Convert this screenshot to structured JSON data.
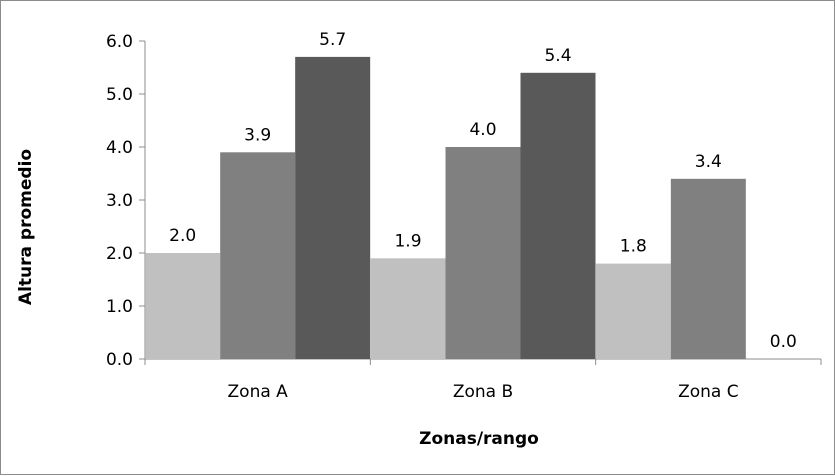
{
  "chart_data": {
    "type": "bar",
    "title": "",
    "xlabel": "Zonas/rango",
    "ylabel": "Altura promedio",
    "categories": [
      "Zona A",
      "Zona B",
      "Zona C"
    ],
    "series": [
      {
        "values": [
          2.0,
          1.9,
          1.8
        ],
        "color": "#c0c0c0"
      },
      {
        "values": [
          3.9,
          4.0,
          3.4
        ],
        "color": "#808080"
      },
      {
        "values": [
          5.7,
          5.4,
          0.0
        ],
        "color": "#595959"
      }
    ],
    "data_labels": [
      [
        "2.0",
        "1.9",
        "1.8"
      ],
      [
        "3.9",
        "4.0",
        "3.4"
      ],
      [
        "5.7",
        "5.4",
        "0.0"
      ]
    ],
    "yticks": [
      "0.0",
      "1.0",
      "2.0",
      "3.0",
      "4.0",
      "5.0",
      "6.0"
    ],
    "ylim": [
      0,
      6
    ],
    "grid": false,
    "legend": "none"
  }
}
